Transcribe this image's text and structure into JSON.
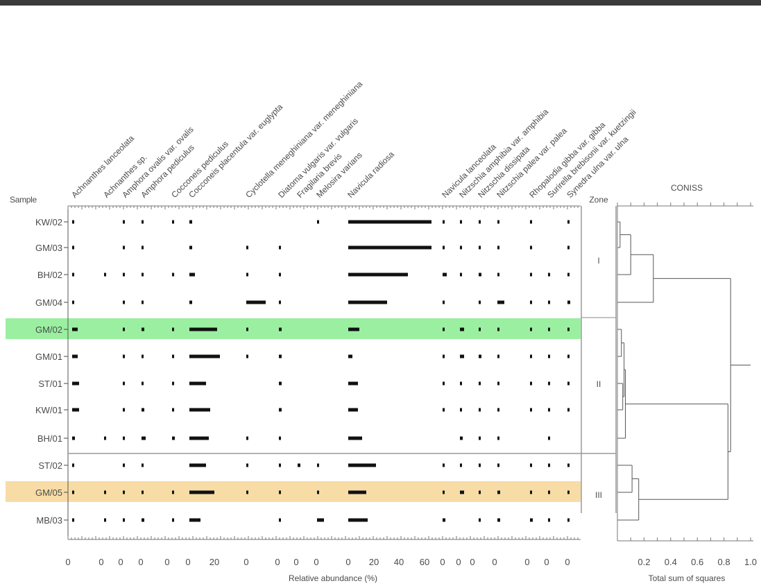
{
  "chart_data": {
    "type": "bar",
    "subtype": "stratigraphic-abundance-diagram",
    "row_header": "Sample",
    "zone_header": "Zone",
    "xlabel": "Relative abundance (%)",
    "samples": [
      "KW/02",
      "GM/03",
      "BH/02",
      "GM/04",
      "GM/02",
      "GM/01",
      "ST/01",
      "KW/01",
      "BH/01",
      "ST/02",
      "GM/05",
      "MB/03"
    ],
    "highlights": [
      {
        "sample": "GM/02",
        "color": "#9af0a0"
      },
      {
        "sample": "GM/05",
        "color": "#f7dca6"
      }
    ],
    "zones": [
      {
        "label": "I",
        "samples": [
          "KW/02",
          "GM/03",
          "BH/02",
          "GM/04"
        ]
      },
      {
        "label": "II",
        "samples": [
          "GM/02",
          "GM/01",
          "ST/01",
          "KW/01",
          "BH/01"
        ]
      },
      {
        "label": "III",
        "samples": [
          "ST/02",
          "GM/05",
          "MB/03"
        ]
      }
    ],
    "taxa": [
      {
        "name": "Achnanthes lanceolata",
        "values": [
          0.5,
          0.5,
          0.5,
          0.5,
          4,
          4,
          5,
          5,
          2,
          0.5,
          0.5,
          0.5
        ]
      },
      {
        "name": "Achnanthes sp.",
        "values": [
          0,
          0,
          0.5,
          0,
          0,
          0,
          0,
          0,
          1,
          0,
          1,
          0.5
        ]
      },
      {
        "name": "Amphora ovalis var. ovalis",
        "values": [
          1,
          1,
          1,
          1,
          0.5,
          0.5,
          1.5,
          1.5,
          1,
          1,
          1,
          1.5
        ]
      },
      {
        "name": "Amphora pediculus",
        "values": [
          1,
          1,
          1,
          1,
          2,
          1,
          1,
          2,
          3,
          0.5,
          0.5,
          2
        ]
      },
      {
        "name": "Cocconeis pediculus",
        "values": [
          0.5,
          0,
          0.5,
          0,
          0.5,
          1,
          1,
          1,
          2,
          0,
          1,
          0.5
        ]
      },
      {
        "name": "Cocconeis placentula var. euglypta",
        "values": [
          2,
          2,
          4,
          2,
          20,
          22,
          12,
          15,
          14,
          12,
          18,
          8
        ]
      },
      {
        "name": "Cyclotella meneghiniana var. meneghiniana",
        "values": [
          0,
          0.5,
          0.5,
          14,
          1,
          1,
          0,
          0,
          0.5,
          1,
          1,
          0
        ]
      },
      {
        "name": "Diatoma vulgaris var. vulgaris",
        "values": [
          0,
          0.5,
          0.5,
          1,
          2,
          2,
          2,
          2,
          1,
          1,
          1,
          0.5
        ]
      },
      {
        "name": "Fragilaria brevis",
        "values": [
          0,
          0,
          0,
          0,
          0,
          0,
          0,
          0,
          0,
          2,
          0,
          0
        ]
      },
      {
        "name": "Melosira varians",
        "values": [
          0.5,
          0,
          0,
          0,
          0,
          0,
          0,
          0,
          0,
          1,
          0.5,
          5
        ]
      },
      {
        "name": "Navicula radiosa",
        "values": [
          60,
          60,
          43,
          28,
          8,
          3,
          7,
          7,
          10,
          20,
          13,
          14
        ]
      },
      {
        "name": "Navicula lanceolata",
        "values": [
          1,
          0.5,
          3,
          1,
          0.5,
          0.5,
          1,
          1,
          0,
          1,
          1,
          2
        ]
      },
      {
        "name": "Nitzschia amphibia var. amphibia",
        "values": [
          0.5,
          0.5,
          1,
          0,
          3,
          3,
          1,
          1,
          2,
          1,
          3,
          0
        ]
      },
      {
        "name": "Nitzschia dissipata",
        "values": [
          1,
          1,
          2,
          1,
          1,
          2,
          1,
          1,
          0.5,
          1,
          1,
          1
        ]
      },
      {
        "name": "Nitzschia palea var. palea",
        "values": [
          1,
          1,
          1,
          5,
          1,
          1,
          1,
          1,
          0.5,
          1,
          2,
          2
        ]
      },
      {
        "name": "Rhopalodia gibba var. gibba",
        "values": [
          1,
          0.5,
          1,
          0.5,
          0.5,
          0.5,
          0.5,
          0.5,
          0,
          0.5,
          0.5,
          2
        ]
      },
      {
        "name": "Surirella brebisonii var. kuetzingii",
        "values": [
          0,
          0,
          0.5,
          1,
          0.5,
          0.5,
          0.5,
          0.5,
          0.5,
          0.5,
          0.5,
          0.5
        ]
      },
      {
        "name": "Synedra ulna var. ulna",
        "values": [
          0.5,
          0.5,
          0.5,
          2,
          0.5,
          0.5,
          1,
          1,
          0,
          1,
          0.5,
          0.5
        ]
      }
    ],
    "x_tick_labels": [
      "0",
      "0",
      "0",
      "0",
      "0",
      "0",
      "20",
      "0",
      "0",
      "0",
      "0",
      "0",
      "20",
      "40",
      "60",
      "0",
      "0",
      "0",
      "0",
      "0",
      "0",
      "0",
      "0"
    ],
    "coniss": {
      "title": "CONISS",
      "xlabel": "Total sum of squares",
      "x_ticks": [
        "0.2",
        "0.4",
        "0.6",
        "0.8",
        "1.0"
      ],
      "xlim": [
        0,
        1.0
      ],
      "merges": [
        {
          "a": "KW/02",
          "b": "GM/03",
          "height": 0.02
        },
        {
          "a": "KW/02+GM/03",
          "b": "BH/02",
          "height": 0.1
        },
        {
          "a": "KW/02+GM/03+BH/02",
          "b": "GM/04",
          "height": 0.27
        },
        {
          "a": "GM/02",
          "b": "GM/01",
          "height": 0.03
        },
        {
          "a": "ST/01",
          "b": "KW/01",
          "height": 0.04
        },
        {
          "a": "GM/02+GM/01",
          "b": "ST/01+KW/01",
          "height": 0.05
        },
        {
          "a": "zone II core",
          "b": "BH/01",
          "height": 0.06
        },
        {
          "a": "ST/02",
          "b": "GM/05",
          "height": 0.11
        },
        {
          "a": "ST/02+GM/05",
          "b": "MB/03",
          "height": 0.16
        },
        {
          "a": "zone II",
          "b": "zone III",
          "height": 0.83
        },
        {
          "a": "zone I",
          "b": "zone II+III",
          "height": 0.85
        }
      ]
    }
  }
}
